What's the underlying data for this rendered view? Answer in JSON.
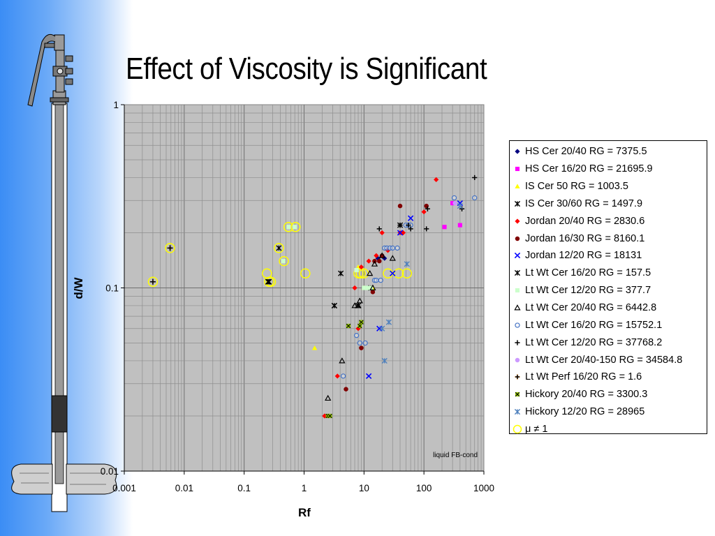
{
  "slide": {
    "title": "Effect of Viscosity is Significant"
  },
  "chart_data": {
    "type": "scatter",
    "title": "Effect of Viscosity is Significant",
    "xlabel": "Rf",
    "ylabel": "d/W",
    "x_scale": "log",
    "y_scale": "log",
    "xlim": [
      0.001,
      1000
    ],
    "ylim": [
      0.01,
      1
    ],
    "x_ticks": [
      "0.001",
      "0.01",
      "0.1",
      "1",
      "10",
      "100",
      "1000"
    ],
    "y_ticks": [
      "0.01",
      "0.1",
      "1"
    ],
    "grid": true,
    "legend_position": "right",
    "annotation": "liquid FB-cond",
    "series": [
      {
        "name": "HS Cer 20/40 RG = 7375.5",
        "color": "#000080",
        "marker": "diamond",
        "x": [
          17,
          20,
          22
        ],
        "y": [
          0.145,
          0.15,
          0.145
        ]
      },
      {
        "name": "HS Cer 16/20 RG = 21695.9",
        "color": "#ff00ff",
        "marker": "square",
        "x": [
          220,
          300,
          400
        ],
        "y": [
          0.215,
          0.29,
          0.22
        ]
      },
      {
        "name": "IS Cer 50 RG = 1003.5",
        "color": "#ffff00",
        "marker": "triangle",
        "x": [
          1.5,
          8,
          10,
          14
        ],
        "y": [
          0.047,
          0.13,
          0.1,
          0.1
        ]
      },
      {
        "name": "IS Cer 30/60 RG = 1497.9",
        "color": "#000000",
        "marker": "asterisk",
        "x": [
          3.2,
          4.1,
          8,
          13,
          40
        ],
        "y": [
          0.08,
          0.12,
          0.08,
          0.1,
          0.22
        ]
      },
      {
        "name": "Jordan 20/40 RG = 2830.6",
        "color": "#ff0000",
        "marker": "diamond",
        "x": [
          2.2,
          3.6,
          7,
          8,
          9,
          12,
          16,
          20,
          25,
          40,
          45,
          100,
          160
        ],
        "y": [
          0.02,
          0.033,
          0.1,
          0.06,
          0.13,
          0.14,
          0.15,
          0.2,
          0.16,
          0.2,
          0.2,
          0.26,
          0.39
        ]
      },
      {
        "name": "Jordan 16/30 RG = 8160.1",
        "color": "#800000",
        "marker": "circle",
        "x": [
          5,
          9,
          14,
          15,
          18,
          20,
          40,
          110
        ],
        "y": [
          0.028,
          0.047,
          0.095,
          0.14,
          0.14,
          0.15,
          0.28,
          0.28
        ]
      },
      {
        "name": "Jordan 12/20 RG = 18131",
        "color": "#0000ff",
        "marker": "x",
        "x": [
          12,
          18,
          30,
          40,
          60,
          400
        ],
        "y": [
          0.033,
          0.06,
          0.12,
          0.2,
          0.24,
          0.29
        ]
      },
      {
        "name": "Lt Wt Cer 16/20 RG = 157.5",
        "color": "#000000",
        "marker": "asterisk",
        "x": [
          0.25,
          0.26,
          0.38,
          3.2
        ],
        "y": [
          0.108,
          0.108,
          0.165,
          0.08
        ]
      },
      {
        "name": "Lt Wt Cer  12/20 RG = 377.7",
        "color": "#ccffcc",
        "marker": "square",
        "x": [
          0.45,
          0.55,
          0.7,
          7.5,
          10,
          11,
          12,
          13
        ],
        "y": [
          0.14,
          0.215,
          0.215,
          0.125,
          0.1,
          0.1,
          0.1,
          0.1
        ]
      },
      {
        "name": "Lt Wt Cer 20/40 RG = 6442.8",
        "color": "#000000",
        "marker": "triangle-open",
        "x": [
          2.5,
          4.3,
          7,
          8,
          8.5,
          12.5,
          14,
          15,
          20,
          30
        ],
        "y": [
          0.025,
          0.04,
          0.08,
          0.08,
          0.085,
          0.12,
          0.1,
          0.135,
          0.15,
          0.145
        ]
      },
      {
        "name": "Lt Wt Cer 16/20 RG = 15752.1",
        "color": "#4472c4",
        "marker": "circle-open",
        "x": [
          4.5,
          7.5,
          8.5,
          10.5,
          15,
          16,
          19,
          22,
          24,
          27,
          30,
          36,
          50,
          55,
          60,
          320,
          700
        ],
        "y": [
          0.033,
          0.055,
          0.05,
          0.05,
          0.11,
          0.11,
          0.11,
          0.165,
          0.165,
          0.165,
          0.165,
          0.165,
          0.22,
          0.22,
          0.22,
          0.31,
          0.31
        ]
      },
      {
        "name": "Lt Wt Cer  12/20 RG = 37768.2",
        "color": "#000000",
        "marker": "plus",
        "x": [
          18,
          40,
          55,
          60,
          110,
          115,
          430,
          700
        ],
        "y": [
          0.21,
          0.22,
          0.22,
          0.21,
          0.21,
          0.27,
          0.27,
          0.4
        ]
      },
      {
        "name": "Lt Wt Cer 20/40-150 RG = 34584.8",
        "color": "#cc99ff",
        "marker": "circle",
        "x": [
          330
        ],
        "y": [
          0.29
        ]
      },
      {
        "name": "Lt Wt Perf 16/20 RG = 1.6",
        "color": "#cc6600",
        "marker": "plus",
        "x": [
          0.003,
          0.0058
        ],
        "y": [
          0.108,
          0.165
        ]
      },
      {
        "name": "Hickory 20/40 RG = 3300.3",
        "color": "#99cc00",
        "marker": "asterisk-box",
        "x": [
          2.5,
          2.7,
          5.5,
          8.5,
          9
        ],
        "y": [
          0.02,
          0.02,
          0.062,
          0.062,
          0.065
        ]
      },
      {
        "name": "Hickory  12/20 RG = 28965",
        "color": "#4f81bd",
        "marker": "asterisk",
        "x": [
          20,
          22,
          26,
          52,
          400
        ],
        "y": [
          0.06,
          0.04,
          0.065,
          0.135,
          0.28
        ]
      },
      {
        "name": "μ ≠ 1",
        "color": "#ffff00",
        "marker": "ring",
        "x": [
          0.003,
          0.0058,
          0.24,
          0.26,
          0.28,
          0.38,
          0.46,
          0.55,
          0.72,
          1.05,
          8.1,
          8.8,
          9.9,
          25,
          38,
          52
        ],
        "y": [
          0.108,
          0.165,
          0.12,
          0.108,
          0.108,
          0.165,
          0.14,
          0.215,
          0.215,
          0.12,
          0.12,
          0.12,
          0.12,
          0.12,
          0.12,
          0.12
        ]
      }
    ]
  }
}
